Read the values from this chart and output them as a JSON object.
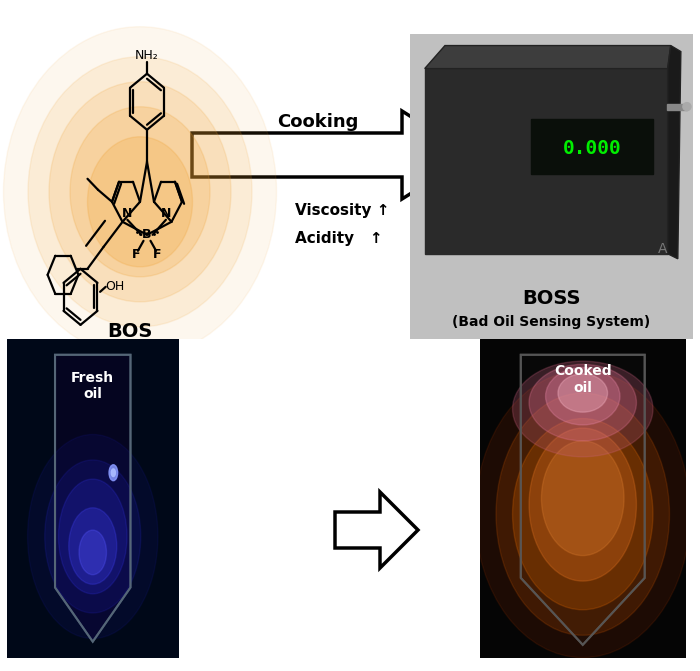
{
  "background_color": "#ffffff",
  "fig_width": 7.0,
  "fig_height": 6.71,
  "fresh_oil_label": "Fresh\noil",
  "cooked_oil_label": "Cooked\noil",
  "cooking_label": "Cooking",
  "viscosity_label": "Viscosity ↑",
  "acidity_label": "Acidity   ↑",
  "bos_label": "BOS",
  "boss_label": "BOSS",
  "boss_sub_label": "(Bad Oil Sensing System)"
}
